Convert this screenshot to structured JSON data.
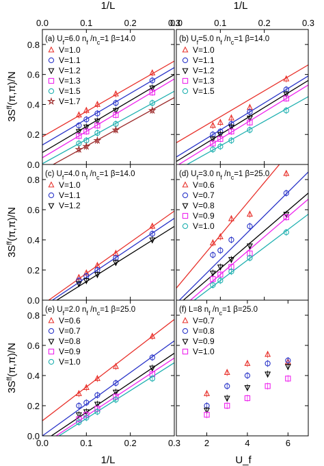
{
  "figure": {
    "top_xlabel": "1/L",
    "bottom_xlabel_left": "1/L",
    "bottom_xlabel_right": "U_f",
    "ylabel": "3S^ff(π,π)/N",
    "colors": {
      "red": "#e8312b",
      "blue": "#2a35c9",
      "black": "#000000",
      "magenta": "#ee22ee",
      "cyan": "#1fb0b0",
      "brown": "#9c2a2a"
    }
  },
  "chart_data": [
    {
      "id": "a",
      "type": "scatter",
      "label": "(a) U_f=6.0  n_f /n_c=1  β=14.0",
      "xlim": [
        0,
        0.3
      ],
      "ylim": [
        0,
        0.9
      ],
      "xticks": [
        0.0,
        0.1,
        0.2,
        0.3
      ],
      "yticks": [
        0.0,
        0.2,
        0.4,
        0.6,
        0.8
      ],
      "series": [
        {
          "name": "V=1.0",
          "marker": "triangle-up",
          "color": "#e8312b",
          "fit": [
            0.185,
            1.68
          ],
          "x": [
            0.083,
            0.1,
            0.125,
            0.167,
            0.25
          ],
          "y": [
            0.33,
            0.36,
            0.4,
            0.47,
            0.61
          ]
        },
        {
          "name": "V=1.1",
          "marker": "circle",
          "color": "#2a35c9",
          "fit": [
            0.13,
            1.72
          ],
          "x": [
            0.083,
            0.1,
            0.125,
            0.167,
            0.25
          ],
          "y": [
            0.26,
            0.3,
            0.34,
            0.41,
            0.56
          ]
        },
        {
          "name": "V=1.2",
          "marker": "triangle-down",
          "color": "#000000",
          "fit": [
            0.08,
            1.73
          ],
          "x": [
            0.083,
            0.1,
            0.125,
            0.167,
            0.25
          ],
          "y": [
            0.22,
            0.25,
            0.29,
            0.36,
            0.51
          ]
        },
        {
          "name": "V=1.3",
          "marker": "square",
          "color": "#ee22ee",
          "fit": [
            0.045,
            1.75
          ],
          "x": [
            0.083,
            0.1,
            0.125,
            0.167,
            0.25
          ],
          "y": [
            0.19,
            0.22,
            0.26,
            0.33,
            0.48
          ]
        },
        {
          "name": "V=1.5",
          "marker": "circle",
          "color": "#1fb0b0",
          "fit": [
            0.005,
            1.61
          ],
          "x": [
            0.083,
            0.1,
            0.125,
            0.167,
            0.25
          ],
          "y": [
            0.14,
            0.16,
            0.21,
            0.27,
            0.41
          ]
        },
        {
          "name": "V=1.7",
          "marker": "star",
          "color": "#9c2a2a",
          "fit": [
            -0.04,
            1.62
          ],
          "x": [
            0.083,
            0.1,
            0.125,
            0.167,
            0.25
          ],
          "y": [
            0.1,
            0.12,
            0.16,
            0.23,
            0.36
          ]
        }
      ]
    },
    {
      "id": "b",
      "type": "scatter",
      "label": "(b) U_f=5.0  n_f /n_c=1  β=14.0",
      "xlim": [
        0,
        0.3
      ],
      "ylim": [
        0,
        0.9
      ],
      "xticks": [
        0.0,
        0.1,
        0.2,
        0.3
      ],
      "yticks": [
        0.0,
        0.2,
        0.4,
        0.6,
        0.8
      ],
      "series": [
        {
          "name": "V=1.0",
          "marker": "triangle-up",
          "color": "#e8312b",
          "fit": [
            0.145,
            1.73
          ],
          "x": [
            0.083,
            0.1,
            0.125,
            0.167,
            0.25
          ],
          "y": [
            0.26,
            0.28,
            0.31,
            0.38,
            0.57
          ]
        },
        {
          "name": "V=1.1",
          "marker": "circle",
          "color": "#2a35c9",
          "fit": [
            0.05,
            1.8
          ],
          "x": [
            0.083,
            0.1,
            0.125,
            0.167,
            0.25
          ],
          "y": [
            0.2,
            0.22,
            0.27,
            0.35,
            0.5
          ]
        },
        {
          "name": "V=1.2",
          "marker": "triangle-down",
          "color": "#000000",
          "fit": [
            0.02,
            1.8
          ],
          "x": [
            0.083,
            0.1,
            0.125,
            0.167,
            0.25
          ],
          "y": [
            0.17,
            0.2,
            0.25,
            0.31,
            0.47
          ]
        },
        {
          "name": "V=1.3",
          "marker": "square",
          "color": "#ee22ee",
          "fit": [
            -0.01,
            1.8
          ],
          "x": [
            0.083,
            0.1,
            0.125,
            0.167,
            0.25
          ],
          "y": [
            0.14,
            0.17,
            0.22,
            0.28,
            0.44
          ]
        },
        {
          "name": "V=1.5",
          "marker": "circle",
          "color": "#1fb0b0",
          "fit": [
            -0.04,
            1.64
          ],
          "x": [
            0.083,
            0.1,
            0.125,
            0.167,
            0.25
          ],
          "y": [
            0.1,
            0.12,
            0.16,
            0.23,
            0.36
          ]
        }
      ]
    },
    {
      "id": "c",
      "type": "scatter",
      "label": "(c) U_f=4.0  n_f /n_c=1  β=14.0",
      "xlim": [
        0,
        0.3
      ],
      "ylim": [
        0,
        0.9
      ],
      "xticks": [
        0.0,
        0.1,
        0.2,
        0.3
      ],
      "yticks": [
        0.0,
        0.2,
        0.4,
        0.6,
        0.8
      ],
      "series": [
        {
          "name": "V=1.0",
          "marker": "triangle-up",
          "color": "#e8312b",
          "fit": [
            -0.03,
            2.07
          ],
          "x": [
            0.083,
            0.1,
            0.125,
            0.167,
            0.25
          ],
          "y": [
            0.15,
            0.18,
            0.23,
            0.31,
            0.49
          ]
        },
        {
          "name": "V=1.1",
          "marker": "circle",
          "color": "#2a35c9",
          "fit": [
            -0.045,
            1.96
          ],
          "x": [
            0.083,
            0.1,
            0.125,
            0.167,
            0.25
          ],
          "y": [
            0.13,
            0.16,
            0.2,
            0.28,
            0.44
          ]
        },
        {
          "name": "V=1.2",
          "marker": "triangle-down",
          "color": "#000000",
          "fit": [
            -0.06,
            1.83
          ],
          "x": [
            0.083,
            0.1,
            0.125,
            0.167,
            0.25
          ],
          "y": [
            0.11,
            0.13,
            0.17,
            0.25,
            0.4
          ]
        }
      ]
    },
    {
      "id": "d",
      "type": "scatter",
      "label": "(d) U_f=3.0  n_f /n_c=1  β=25.0",
      "xlim": [
        0,
        0.3
      ],
      "ylim": [
        0,
        0.9
      ],
      "xticks": [
        0.0,
        0.1,
        0.2,
        0.3
      ],
      "yticks": [
        0.0,
        0.2,
        0.4,
        0.6,
        0.8
      ],
      "series": [
        {
          "name": "V=0.6",
          "marker": "triangle-up",
          "color": "#e8312b",
          "fit": [
            0.08,
            3.5
          ],
          "x": [
            0.083,
            0.1,
            0.125,
            0.167,
            0.25
          ],
          "y": [
            0.38,
            0.42,
            0.54,
            0.57,
            0.84
          ]
        },
        {
          "name": "V=0.7",
          "marker": "circle",
          "color": "#2a35c9",
          "fit": [
            -0.02,
            2.9
          ],
          "x": [
            0.083,
            0.1,
            0.125,
            0.167,
            0.25
          ],
          "y": [
            0.3,
            0.33,
            0.4,
            0.49,
            0.71
          ]
        },
        {
          "name": "V=0.8",
          "marker": "triangle-down",
          "color": "#000000",
          "fit": [
            -0.04,
            2.5
          ],
          "x": [
            0.083,
            0.1,
            0.125,
            0.167,
            0.25
          ],
          "y": [
            0.18,
            0.22,
            0.27,
            0.36,
            0.57
          ]
        },
        {
          "name": "V=0.9",
          "marker": "square",
          "color": "#ee22ee",
          "fit": [
            -0.08,
            2.5
          ],
          "x": [
            0.083,
            0.1,
            0.125,
            0.167,
            0.25
          ],
          "y": [
            0.14,
            0.17,
            0.22,
            0.31,
            0.55
          ]
        },
        {
          "name": "V=1.0",
          "marker": "circle",
          "color": "#1fb0b0",
          "fit": [
            -0.09,
            2.2
          ],
          "x": [
            0.083,
            0.1,
            0.125,
            0.167,
            0.25
          ],
          "y": [
            0.1,
            0.13,
            0.19,
            0.28,
            0.45
          ]
        }
      ]
    },
    {
      "id": "e",
      "type": "scatter",
      "label": "(e) U_f=2.0  n_f /n_c=1  β=25.0",
      "xlim": [
        0,
        0.3
      ],
      "ylim": [
        0,
        0.9
      ],
      "xticks": [
        0.0,
        0.1,
        0.2,
        0.3
      ],
      "yticks": [
        0.0,
        0.2,
        0.4,
        0.6,
        0.8
      ],
      "xlabel": "1/L",
      "series": [
        {
          "name": "V=0.6",
          "marker": "triangle-up",
          "color": "#e8312b",
          "fit": [
            0.1,
            2.24
          ],
          "x": [
            0.083,
            0.1,
            0.125,
            0.167,
            0.25
          ],
          "y": [
            0.28,
            0.32,
            0.38,
            0.46,
            0.66
          ]
        },
        {
          "name": "V=0.7",
          "marker": "circle",
          "color": "#2a35c9",
          "fit": [
            0.0,
            2.1
          ],
          "x": [
            0.083,
            0.1,
            0.125,
            0.167,
            0.25
          ],
          "y": [
            0.2,
            0.22,
            0.27,
            0.35,
            0.52
          ]
        },
        {
          "name": "V=0.8",
          "marker": "triangle-down",
          "color": "#000000",
          "fit": [
            -0.04,
            1.96
          ],
          "x": [
            0.083,
            0.1,
            0.125,
            0.167,
            0.25
          ],
          "y": [
            0.14,
            0.16,
            0.21,
            0.29,
            0.45
          ]
        },
        {
          "name": "V=0.9",
          "marker": "square",
          "color": "#ee22ee",
          "fit": [
            -0.06,
            1.92
          ],
          "x": [
            0.083,
            0.1,
            0.125,
            0.167,
            0.25
          ],
          "y": [
            0.11,
            0.14,
            0.18,
            0.26,
            0.41
          ]
        },
        {
          "name": "V=1.0",
          "marker": "circle",
          "color": "#1fb0b0",
          "fit": [
            -0.07,
            1.85
          ],
          "x": [
            0.083,
            0.1,
            0.125,
            0.167,
            0.25
          ],
          "y": [
            0.09,
            0.12,
            0.16,
            0.24,
            0.38
          ]
        }
      ]
    },
    {
      "id": "f",
      "type": "scatter",
      "label": "(f) L=8  n_f /n_c=1  β=25.0",
      "xlim": [
        0.5,
        7.0
      ],
      "ylim": [
        0,
        0.9
      ],
      "xticks": [
        2,
        4,
        6
      ],
      "yticks": [
        0.0,
        0.2,
        0.4,
        0.6,
        0.8
      ],
      "xlabel": "U_f",
      "series": [
        {
          "name": "V=0.7",
          "marker": "triangle-up",
          "color": "#e8312b",
          "x": [
            2,
            3,
            4,
            5,
            6
          ],
          "y": [
            0.28,
            0.42,
            0.48,
            0.54,
            0.49
          ]
        },
        {
          "name": "V=0.8",
          "marker": "circle",
          "color": "#2a35c9",
          "x": [
            2,
            3,
            4,
            5,
            6
          ],
          "y": [
            0.2,
            0.33,
            0.4,
            0.48,
            0.5
          ]
        },
        {
          "name": "V=0.9",
          "marker": "triangle-down",
          "color": "#000000",
          "x": [
            2,
            3,
            4,
            5,
            6
          ],
          "y": [
            0.17,
            0.25,
            0.32,
            0.41,
            0.46
          ]
        },
        {
          "name": "V=1.0",
          "marker": "square",
          "color": "#ee22ee",
          "x": [
            2,
            3,
            4,
            5,
            6
          ],
          "y": [
            0.14,
            0.2,
            0.25,
            0.33,
            0.38
          ]
        }
      ]
    }
  ]
}
